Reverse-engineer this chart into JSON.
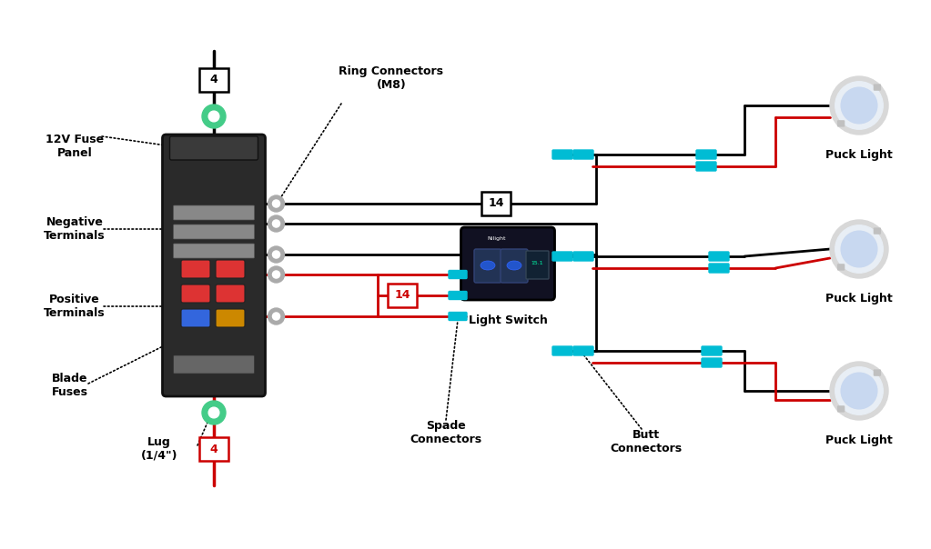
{
  "labels": {
    "fuse_panel": "12V Fuse\nPanel",
    "negative_terminals": "Negative\nTerminals",
    "positive_terminals": "Positive\nTerminals",
    "blade_fuses": "Blade\nFuses",
    "lug": "Lug\n(1/4\")",
    "ring_connectors": "Ring Connectors\n(M8)",
    "light_switch": "Light Switch",
    "spade_connectors": "Spade\nConnectors",
    "butt_connectors": "Butt\nConnectors",
    "puck_light": "Puck Light",
    "nilight": "Nilight",
    "display_val": "15.1",
    "gauge_top": "4",
    "gauge_bot": "4",
    "gauge_neg": "14",
    "gauge_pos": "14"
  },
  "colors": {
    "bg": "#ffffff",
    "black_wire": "#000000",
    "red_wire": "#cc0000",
    "green_connector": "#44cc88",
    "cyan_connector": "#00bcd4",
    "fuse_panel_dark": "#2a2a2a",
    "fuse_panel_cap": "#3a3a3a",
    "fuse_panel_edge": "#111111",
    "neg_bar": "#888888",
    "neg_bar_edge": "#555555",
    "bot_bar": "#666666",
    "bot_bar_edge": "#333333",
    "switch_bg": "#111122",
    "switch_rocker": "#223355",
    "switch_rocker_edge": "#334477",
    "switch_led": "#2255cc",
    "switch_led_edge": "#3366ff",
    "switch_display_bg": "#112233",
    "switch_display_edge": "#334455",
    "switch_display_text": "#00ffaa",
    "switch_text": "#ffffff",
    "ring_gray": "#aaaaaa",
    "ring_hole": "#ffffff",
    "puck_outer": "#d8d8d8",
    "puck_middle": "#e8eef5",
    "puck_inner": "#c8d8f0",
    "puck_clip": "#c0c0c0",
    "fuse_red": "#dd3333",
    "fuse_blue": "#3366dd",
    "fuse_yellow": "#cc8800",
    "fuse_edge": "#222222",
    "label_black": "#000000",
    "label_red": "#cc0000"
  }
}
